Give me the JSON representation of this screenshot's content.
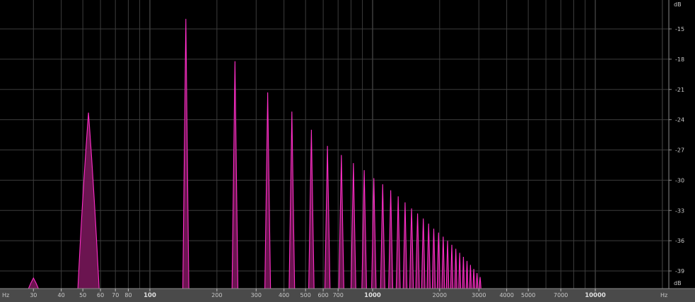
{
  "chart_data": {
    "type": "area",
    "x_unit": "Hz",
    "y_unit": "dB",
    "x_scale": "log",
    "xlim": [
      25,
      20000
    ],
    "ylim": [
      -40.5,
      -12
    ],
    "x_ticks": [
      {
        "v": 30,
        "label": "30"
      },
      {
        "v": 40,
        "label": "40"
      },
      {
        "v": 50,
        "label": "50"
      },
      {
        "v": 60,
        "label": "60"
      },
      {
        "v": 70,
        "label": "70"
      },
      {
        "v": 80,
        "label": "80"
      },
      {
        "v": 100,
        "label": "100",
        "major": true
      },
      {
        "v": 200,
        "label": "200"
      },
      {
        "v": 300,
        "label": "300"
      },
      {
        "v": 400,
        "label": "400"
      },
      {
        "v": 500,
        "label": "500"
      },
      {
        "v": 600,
        "label": "600"
      },
      {
        "v": 700,
        "label": "700"
      },
      {
        "v": 1000,
        "label": "1000",
        "major": true
      },
      {
        "v": 2000,
        "label": "2000"
      },
      {
        "v": 3000,
        "label": "3000"
      },
      {
        "v": 4000,
        "label": "4000"
      },
      {
        "v": 5000,
        "label": "5000"
      },
      {
        "v": 7000,
        "label": "7000"
      },
      {
        "v": 10000,
        "label": "10000",
        "major": true
      }
    ],
    "y_ticks": [
      -15,
      -18,
      -21,
      -24,
      -27,
      -30,
      -33,
      -36,
      -39
    ],
    "grid": true,
    "colors": {
      "stroke": "#ff2ec8",
      "fill": "#6b1450",
      "grid": "#3c3c3c",
      "grid_major": "#5a5a5a",
      "axis_bg": "#4a4a4a"
    },
    "peaks": [
      {
        "freq": 30,
        "db": -39.7
      },
      {
        "freq": 53,
        "db": -23.3
      },
      {
        "freq": 145,
        "db": -14.0
      },
      {
        "freq": 241,
        "db": -18.2
      },
      {
        "freq": 338,
        "db": -21.3
      },
      {
        "freq": 434,
        "db": -23.2
      },
      {
        "freq": 531,
        "db": -25.0
      },
      {
        "freq": 627,
        "db": -26.6
      },
      {
        "freq": 724,
        "db": -27.5
      },
      {
        "freq": 820,
        "db": -28.3
      },
      {
        "freq": 917,
        "db": -29.0
      },
      {
        "freq": 1013,
        "db": -29.8
      },
      {
        "freq": 1110,
        "db": -30.4
      },
      {
        "freq": 1206,
        "db": -31.0
      },
      {
        "freq": 1303,
        "db": -31.6
      },
      {
        "freq": 1399,
        "db": -32.2
      },
      {
        "freq": 1496,
        "db": -32.8
      },
      {
        "freq": 1592,
        "db": -33.3
      },
      {
        "freq": 1689,
        "db": -33.8
      },
      {
        "freq": 1785,
        "db": -34.3
      },
      {
        "freq": 1882,
        "db": -34.8
      },
      {
        "freq": 1978,
        "db": -35.2
      },
      {
        "freq": 2075,
        "db": -35.6
      },
      {
        "freq": 2171,
        "db": -36.0
      },
      {
        "freq": 2268,
        "db": -36.4
      },
      {
        "freq": 2364,
        "db": -36.8
      },
      {
        "freq": 2461,
        "db": -37.2
      },
      {
        "freq": 2557,
        "db": -37.6
      },
      {
        "freq": 2654,
        "db": -38.0
      },
      {
        "freq": 2750,
        "db": -38.4
      },
      {
        "freq": 2847,
        "db": -38.8
      },
      {
        "freq": 2943,
        "db": -39.2
      },
      {
        "freq": 3040,
        "db": -39.6
      }
    ]
  }
}
